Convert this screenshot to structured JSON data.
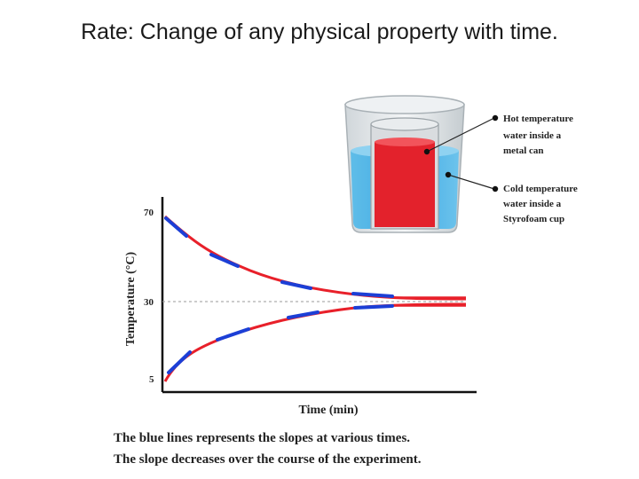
{
  "title": "Rate: Change of any physical property with time.",
  "graph": {
    "ylabel": "Temperature (°C)",
    "xlabel": "Time (min)",
    "yticks": [
      "70",
      "30",
      "5"
    ]
  },
  "beaker": {
    "hot_label": [
      "Hot temperature",
      "water inside a",
      "metal can"
    ],
    "cold_label": [
      "Cold temperature",
      "water inside a",
      "Styrofoam cup"
    ]
  },
  "caption": {
    "line1": "The blue lines represents the slopes at various times.",
    "line2": "The slope decreases over the course of the experiment."
  },
  "colors": {
    "curve": "#e8202a",
    "slope": "#1c3fd6",
    "water": "#4fb6e8",
    "can": "#e3222c"
  }
}
